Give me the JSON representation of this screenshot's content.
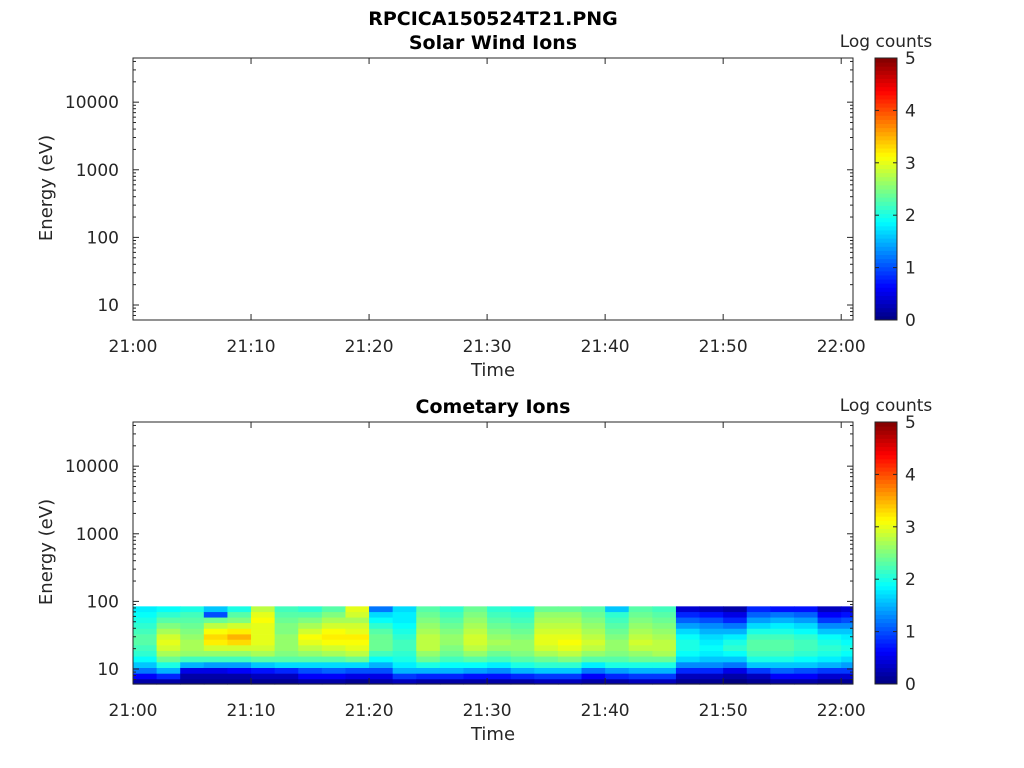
{
  "figure_title": "RPCICA150524T21.PNG",
  "chart_data": [
    {
      "type": "heatmap",
      "title": "Solar Wind Ions",
      "xlabel": "Time",
      "ylabel": "Energy (eV)",
      "x_ticks": [
        "21:00",
        "21:10",
        "21:20",
        "21:30",
        "21:40",
        "21:50",
        "22:00"
      ],
      "x_range": [
        "21:00",
        "22:01"
      ],
      "y_scale": "log",
      "y_ticks": [
        "10",
        "100",
        "1000",
        "10000"
      ],
      "y_range": [
        6,
        45000
      ],
      "colorbar": {
        "label": "Log counts",
        "range": [
          0,
          5
        ],
        "ticks": [
          "0",
          "1",
          "2",
          "3",
          "4",
          "5"
        ],
        "colormap": "jet"
      },
      "data": {
        "note_empty": true,
        "columns": []
      }
    },
    {
      "type": "heatmap",
      "title": "Cometary Ions",
      "xlabel": "Time",
      "ylabel": "Energy (eV)",
      "x_ticks": [
        "21:00",
        "21:10",
        "21:20",
        "21:30",
        "21:40",
        "21:50",
        "22:00"
      ],
      "x_range": [
        "21:00",
        "22:01"
      ],
      "y_scale": "log",
      "y_ticks": [
        "10",
        "100",
        "1000",
        "10000"
      ],
      "y_range": [
        6,
        45000
      ],
      "colorbar": {
        "label": "Log counts",
        "range": [
          0,
          5
        ],
        "ticks": [
          "0",
          "1",
          "2",
          "3",
          "4",
          "5"
        ],
        "colormap": "jet"
      },
      "energy_bins_eV": [
        6.5,
        7.8,
        9.5,
        11.5,
        14,
        17,
        20.5,
        25,
        30,
        36,
        44,
        53,
        64,
        77
      ],
      "columns": [
        {
          "t": "21:00",
          "counts": [
            0.2,
            0.6,
            1.2,
            1.6,
            1.9,
            2.1,
            2.2,
            2.3,
            2.3,
            2.2,
            2.1,
            2.0,
            1.9,
            1.8
          ]
        },
        {
          "t": "21:02",
          "counts": [
            0.2,
            0.8,
            1.5,
            2.0,
            2.4,
            2.7,
            2.9,
            3.0,
            2.9,
            2.7,
            2.5,
            2.3,
            2.1,
            1.9
          ]
        },
        {
          "t": "21:04",
          "counts": [
            0.1,
            0.2,
            0.5,
            1.5,
            2.2,
            2.6,
            2.7,
            2.7,
            2.6,
            2.5,
            2.4,
            2.3,
            2.2,
            2.0
          ]
        },
        {
          "t": "21:06",
          "counts": [
            0.1,
            0.2,
            0.5,
            1.4,
            2.2,
            2.6,
            2.9,
            3.2,
            3.3,
            3.1,
            2.8,
            2.4,
            1.0,
            1.6
          ]
        },
        {
          "t": "21:08",
          "counts": [
            0.1,
            0.2,
            0.6,
            1.4,
            2.2,
            2.6,
            2.9,
            3.3,
            3.5,
            3.2,
            2.9,
            2.5,
            2.3,
            2.0
          ]
        },
        {
          "t": "21:10",
          "counts": [
            0.1,
            0.3,
            0.7,
            1.6,
            2.3,
            2.7,
            2.9,
            3.0,
            3.0,
            3.0,
            3.0,
            3.1,
            3.0,
            2.8
          ]
        },
        {
          "t": "21:12",
          "counts": [
            0.1,
            0.3,
            0.8,
            1.7,
            2.3,
            2.5,
            2.6,
            2.6,
            2.6,
            2.5,
            2.5,
            2.4,
            2.3,
            2.2
          ]
        },
        {
          "t": "21:14",
          "counts": [
            0.2,
            0.6,
            1.0,
            1.7,
            2.3,
            2.6,
            2.8,
            3.0,
            3.1,
            2.9,
            2.7,
            2.5,
            2.3,
            2.1
          ]
        },
        {
          "t": "21:16",
          "counts": [
            0.2,
            0.6,
            1.1,
            1.7,
            2.3,
            2.7,
            2.9,
            3.1,
            3.2,
            3.1,
            2.9,
            2.7,
            2.5,
            2.3
          ]
        },
        {
          "t": "21:18",
          "counts": [
            0.1,
            0.5,
            1.0,
            1.7,
            2.4,
            2.8,
            3.0,
            3.1,
            3.2,
            3.0,
            2.9,
            2.7,
            2.9,
            3.0
          ]
        },
        {
          "t": "21:20",
          "counts": [
            0.2,
            0.5,
            1.0,
            1.5,
            1.9,
            2.2,
            2.4,
            2.4,
            2.4,
            2.3,
            2.1,
            1.9,
            1.7,
            1.2
          ]
        },
        {
          "t": "21:22",
          "counts": [
            0.3,
            0.9,
            1.5,
            1.8,
            2.0,
            2.1,
            2.2,
            2.2,
            2.1,
            2.0,
            1.9,
            1.8,
            1.8,
            1.7
          ]
        },
        {
          "t": "21:24",
          "counts": [
            0.2,
            0.8,
            1.5,
            2.0,
            2.4,
            2.6,
            2.8,
            2.8,
            2.8,
            2.7,
            2.6,
            2.5,
            2.4,
            2.3
          ]
        },
        {
          "t": "21:26",
          "counts": [
            0.2,
            0.8,
            1.5,
            1.9,
            2.2,
            2.4,
            2.5,
            2.6,
            2.6,
            2.5,
            2.4,
            2.3,
            2.2,
            2.1
          ]
        },
        {
          "t": "21:28",
          "counts": [
            0.2,
            0.7,
            1.4,
            1.9,
            2.3,
            2.6,
            2.8,
            2.9,
            2.9,
            2.8,
            2.7,
            2.6,
            2.5,
            2.4
          ]
        },
        {
          "t": "21:30",
          "counts": [
            0.2,
            0.7,
            1.3,
            1.8,
            2.2,
            2.4,
            2.6,
            2.7,
            2.6,
            2.5,
            2.4,
            2.3,
            2.2,
            2.1
          ]
        },
        {
          "t": "21:32",
          "counts": [
            0.2,
            0.8,
            1.5,
            2.0,
            2.3,
            2.5,
            2.6,
            2.6,
            2.5,
            2.4,
            2.3,
            2.2,
            2.1,
            2.0
          ]
        },
        {
          "t": "21:34",
          "counts": [
            0.3,
            0.9,
            1.6,
            2.1,
            2.4,
            2.7,
            2.9,
            3.0,
            3.0,
            2.9,
            2.8,
            2.7,
            2.6,
            2.4
          ]
        },
        {
          "t": "21:36",
          "counts": [
            0.3,
            0.9,
            1.6,
            2.1,
            2.5,
            2.8,
            3.0,
            3.1,
            3.0,
            2.9,
            2.8,
            2.7,
            2.6,
            2.4
          ]
        },
        {
          "t": "21:38",
          "counts": [
            0.2,
            0.6,
            1.2,
            1.8,
            2.3,
            2.6,
            2.8,
            2.9,
            2.8,
            2.7,
            2.6,
            2.5,
            2.4,
            2.3
          ]
        },
        {
          "t": "21:40",
          "counts": [
            0.2,
            0.8,
            1.4,
            2.0,
            2.3,
            2.5,
            2.6,
            2.6,
            2.5,
            2.4,
            2.3,
            2.2,
            2.1,
            1.6
          ]
        },
        {
          "t": "21:42",
          "counts": [
            0.3,
            0.9,
            1.5,
            2.0,
            2.4,
            2.6,
            2.8,
            2.9,
            2.8,
            2.7,
            2.6,
            2.5,
            2.4,
            2.3
          ]
        },
        {
          "t": "21:44",
          "counts": [
            0.3,
            0.9,
            1.5,
            2.0,
            2.4,
            2.7,
            2.8,
            2.8,
            2.7,
            2.6,
            2.5,
            2.4,
            2.3,
            2.2
          ]
        },
        {
          "t": "21:46",
          "counts": [
            0.1,
            0.3,
            0.8,
            1.3,
            1.7,
            1.9,
            2.0,
            2.0,
            1.9,
            1.7,
            1.4,
            1.1,
            0.8,
            0.4
          ]
        },
        {
          "t": "21:48",
          "counts": [
            0.1,
            0.3,
            0.8,
            1.3,
            1.6,
            1.8,
            1.9,
            1.8,
            1.7,
            1.5,
            1.3,
            1.0,
            0.7,
            0.3
          ]
        },
        {
          "t": "21:50",
          "counts": [
            0.0,
            0.2,
            0.5,
            1.2,
            1.6,
            1.9,
            2.1,
            2.0,
            1.8,
            1.5,
            1.2,
            0.8,
            0.5,
            0.2
          ]
        },
        {
          "t": "21:52",
          "counts": [
            0.1,
            0.3,
            0.9,
            1.6,
            2.0,
            2.2,
            2.3,
            2.3,
            2.2,
            2.0,
            1.7,
            1.4,
            1.1,
            0.8
          ]
        },
        {
          "t": "21:54",
          "counts": [
            0.2,
            0.6,
            1.1,
            1.6,
            2.0,
            2.2,
            2.3,
            2.3,
            2.2,
            2.0,
            1.8,
            1.5,
            1.2,
            0.7
          ]
        },
        {
          "t": "21:56",
          "counts": [
            0.2,
            0.6,
            1.0,
            1.6,
            1.9,
            2.1,
            2.2,
            2.2,
            2.1,
            1.9,
            1.7,
            1.4,
            1.1,
            0.7
          ]
        },
        {
          "t": "21:58",
          "counts": [
            0.1,
            0.4,
            0.9,
            1.5,
            1.8,
            2.0,
            2.1,
            2.0,
            1.9,
            1.6,
            1.3,
            0.9,
            0.6,
            0.3
          ]
        },
        {
          "t": "22:00",
          "counts": [
            0.1,
            0.4,
            0.9,
            1.4,
            1.7,
            1.9,
            2.0,
            1.9,
            1.8,
            1.6,
            1.3,
            1.0,
            0.7,
            0.4
          ]
        }
      ]
    }
  ]
}
